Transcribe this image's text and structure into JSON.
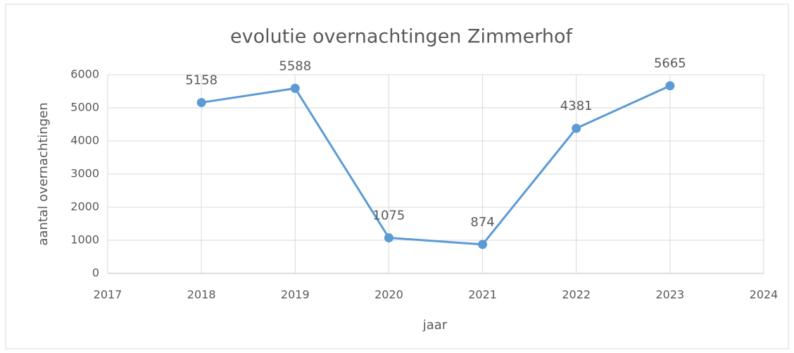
{
  "chart_data": {
    "type": "line",
    "title": "evolutie overnachtingen Zimmerhof",
    "x_label": "jaar",
    "y_label": "aantal overnachtingen",
    "x": [
      2018,
      2019,
      2020,
      2021,
      2022,
      2023
    ],
    "series": [
      {
        "name": "overnachtingen",
        "color": "#5b9bd5",
        "values": [
          5158,
          5588,
          1075,
          874,
          4381,
          5665
        ]
      }
    ],
    "xlim": [
      2017,
      2024
    ],
    "xticks": [
      2017,
      2018,
      2019,
      2020,
      2021,
      2022,
      2023,
      2024
    ],
    "ylim": [
      0,
      6000
    ],
    "yticks": [
      0,
      1000,
      2000,
      3000,
      4000,
      5000,
      6000
    ],
    "grid": true
  }
}
